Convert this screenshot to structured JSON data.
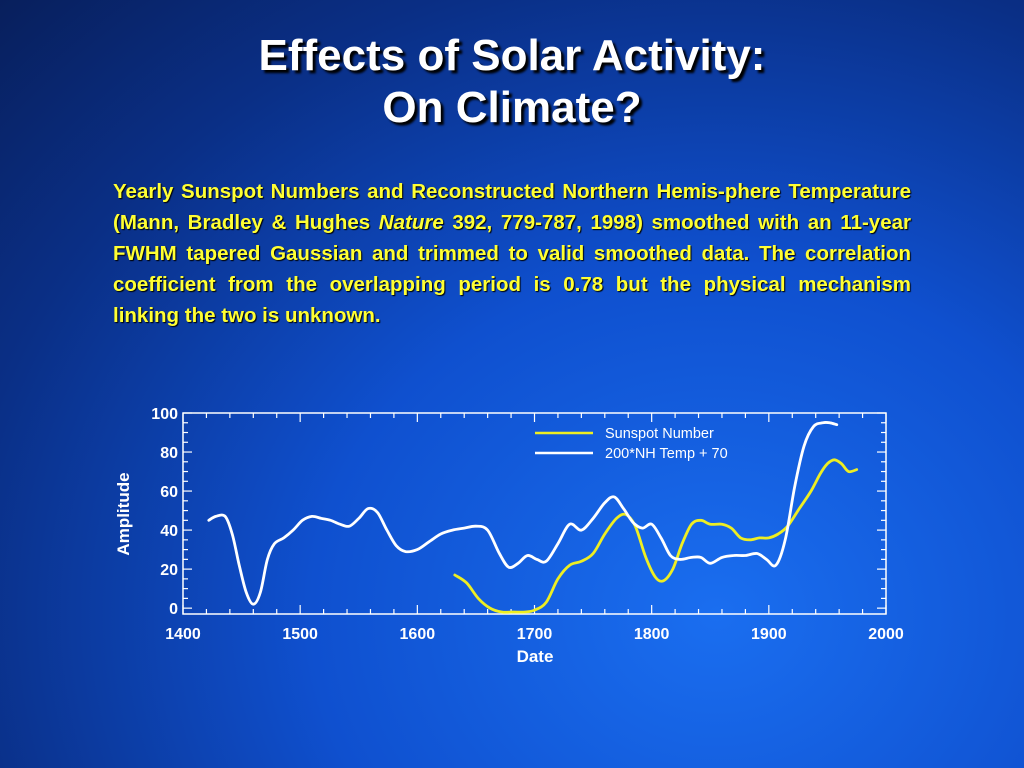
{
  "title": {
    "line1": "Effects of Solar Activity:",
    "line2": "On Climate?"
  },
  "caption": {
    "part1": "Yearly Sunspot Numbers and Reconstructed Northern Hemis-phere Temperature (Mann, Bradley & Hughes ",
    "journal": "Nature",
    "part2": " 392, 779-787, 1998) smoothed with an 11-year FWHM tapered Gaussian and trimmed to valid smoothed data. The correlation coefficient from the overlapping period is 0.78 but the physical mechanism linking the two is unknown."
  },
  "colors": {
    "sunspot": "#eeee22",
    "temperature": "#ffffff",
    "axis": "#ffffff"
  },
  "chart_data": {
    "type": "line",
    "xlabel": "Date",
    "ylabel": "Amplitude",
    "xlim": [
      1400,
      2000
    ],
    "ylim": [
      -3,
      100
    ],
    "xticks": [
      1400,
      1500,
      1600,
      1700,
      1800,
      1900,
      2000
    ],
    "yticks": [
      0,
      20,
      40,
      60,
      80,
      100
    ],
    "legend_position": "top-right",
    "series": [
      {
        "name": "Sunspot Number",
        "x": [
          1632,
          1642,
          1652,
          1662,
          1672,
          1682,
          1692,
          1700,
          1710,
          1720,
          1730,
          1740,
          1750,
          1760,
          1770,
          1778,
          1786,
          1795,
          1803,
          1810,
          1818,
          1826,
          1834,
          1842,
          1850,
          1860,
          1868,
          1876,
          1884,
          1892,
          1900,
          1908,
          1916,
          1926,
          1936,
          1944,
          1950,
          1956,
          1962,
          1968,
          1975
        ],
        "y": [
          17,
          13,
          5,
          0,
          -2,
          -2,
          -2,
          -1,
          3,
          15,
          22,
          24,
          28,
          38,
          46,
          48,
          42,
          26,
          16,
          14,
          20,
          33,
          43,
          45,
          43,
          43,
          41,
          36,
          35,
          36,
          36,
          38,
          42,
          51,
          60,
          69,
          74,
          76,
          74,
          70,
          71
        ]
      },
      {
        "name": "200*NH Temp + 70",
        "x": [
          1422,
          1428,
          1436,
          1442,
          1448,
          1454,
          1460,
          1466,
          1472,
          1478,
          1486,
          1494,
          1502,
          1510,
          1518,
          1526,
          1534,
          1542,
          1550,
          1558,
          1566,
          1574,
          1582,
          1590,
          1600,
          1610,
          1620,
          1630,
          1640,
          1650,
          1660,
          1670,
          1678,
          1686,
          1694,
          1702,
          1710,
          1720,
          1730,
          1740,
          1750,
          1760,
          1768,
          1776,
          1784,
          1792,
          1800,
          1808,
          1816,
          1824,
          1834,
          1842,
          1850,
          1860,
          1870,
          1880,
          1890,
          1898,
          1906,
          1914,
          1922,
          1930,
          1938,
          1946,
          1952,
          1958
        ],
        "y": [
          45,
          47,
          47,
          38,
          22,
          8,
          2,
          8,
          25,
          33,
          36,
          40,
          45,
          47,
          46,
          45,
          43,
          42,
          46,
          51,
          49,
          40,
          32,
          29,
          30,
          34,
          38,
          40,
          41,
          42,
          40,
          28,
          21,
          23,
          27,
          25,
          24,
          33,
          43,
          40,
          46,
          54,
          57,
          51,
          44,
          41,
          43,
          36,
          27,
          25,
          26,
          26,
          23,
          26,
          27,
          27,
          28,
          25,
          22,
          35,
          62,
          83,
          93,
          95,
          95,
          94
        ]
      }
    ]
  }
}
